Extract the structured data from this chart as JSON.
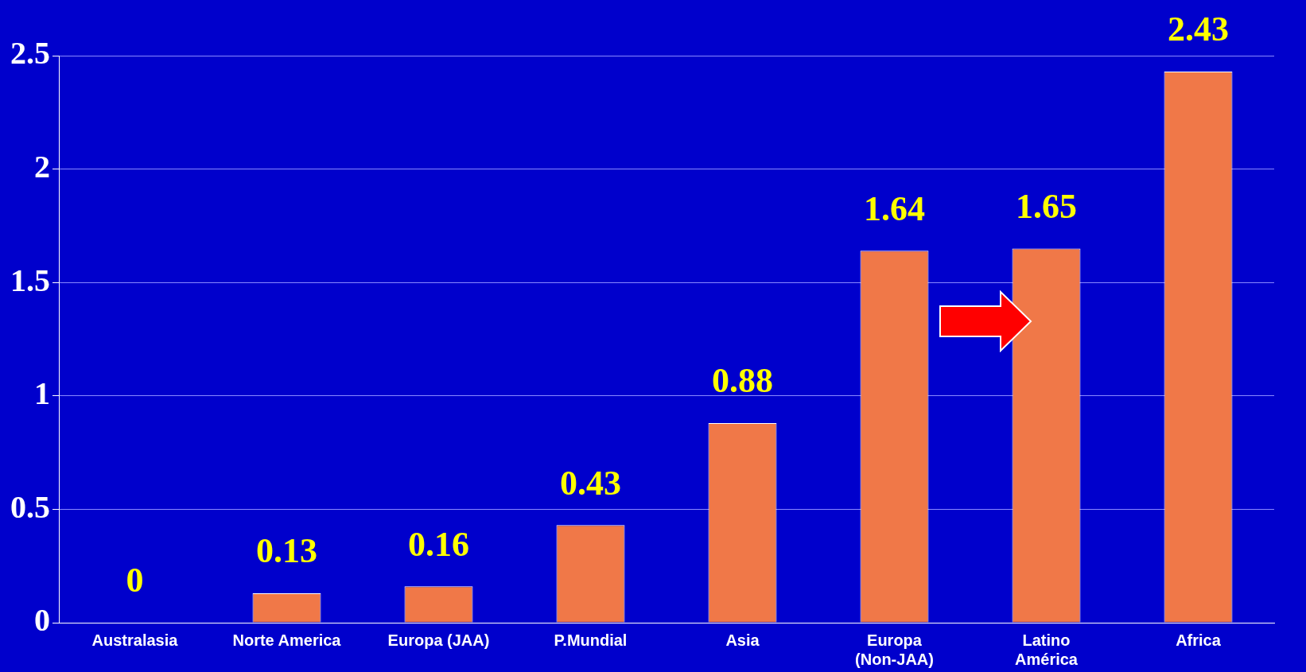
{
  "chart_data": {
    "type": "bar",
    "categories": [
      "Australasia",
      "Norte America",
      "Europa (JAA)",
      "P.Mundial",
      "Asia",
      "Europa (Non-JAA)",
      "Latino América",
      "Africa"
    ],
    "values": [
      0,
      0.13,
      0.16,
      0.43,
      0.88,
      1.64,
      1.65,
      2.43
    ],
    "color": "#f07848",
    "ylim": [
      0,
      2.5
    ],
    "yticks": [
      0,
      0.5,
      1,
      1.5,
      2,
      2.5
    ],
    "grid": "y",
    "data_labels": true,
    "legend": false
  }
}
